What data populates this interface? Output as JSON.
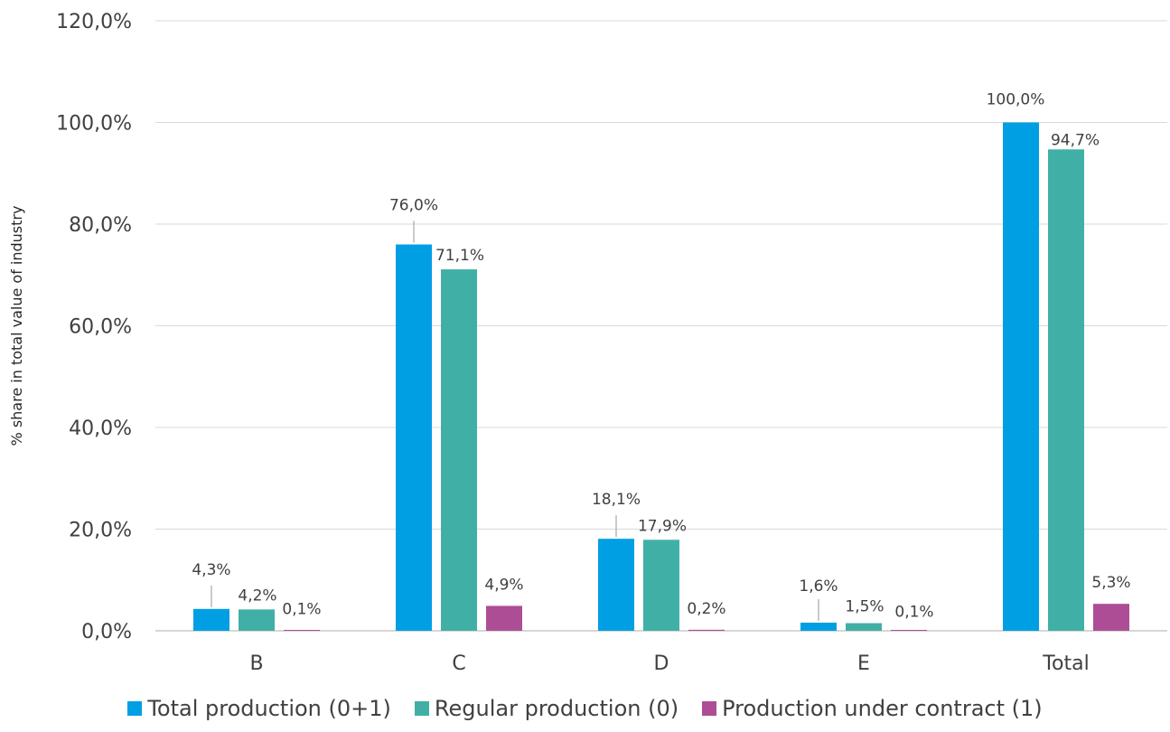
{
  "chart_data": {
    "type": "bar",
    "title": "",
    "xlabel": "",
    "ylabel": "% share in total value of industry",
    "ylim": [
      0,
      120
    ],
    "ytick_step": 20,
    "ytick_labels": [
      "0,0%",
      "20,0%",
      "40,0%",
      "60,0%",
      "80,0%",
      "100,0%",
      "120,0%"
    ],
    "categories": [
      "B",
      "C",
      "D",
      "E",
      "Total"
    ],
    "series": [
      {
        "name": "Total production (0+1)",
        "color": "#009fe3",
        "values": [
          4.3,
          76.0,
          18.1,
          1.6,
          100.0
        ],
        "labels": [
          "4,3%",
          "76,0%",
          "18,1%",
          "1,6%",
          "100,0%"
        ]
      },
      {
        "name": "Regular production (0)",
        "color": "#40b0a6",
        "values": [
          4.2,
          71.1,
          17.9,
          1.5,
          94.7
        ],
        "labels": [
          "4,2%",
          "71,1%",
          "17,9%",
          "1,5%",
          "94,7%"
        ]
      },
      {
        "name": "Production under contract (1)",
        "color": "#ad4d95",
        "values": [
          0.1,
          4.9,
          0.2,
          0.1,
          5.3
        ],
        "labels": [
          "0,1%",
          "4,9%",
          "0,2%",
          "0,1%",
          "5,3%"
        ]
      }
    ],
    "grid": true,
    "legend_position": "bottom"
  }
}
